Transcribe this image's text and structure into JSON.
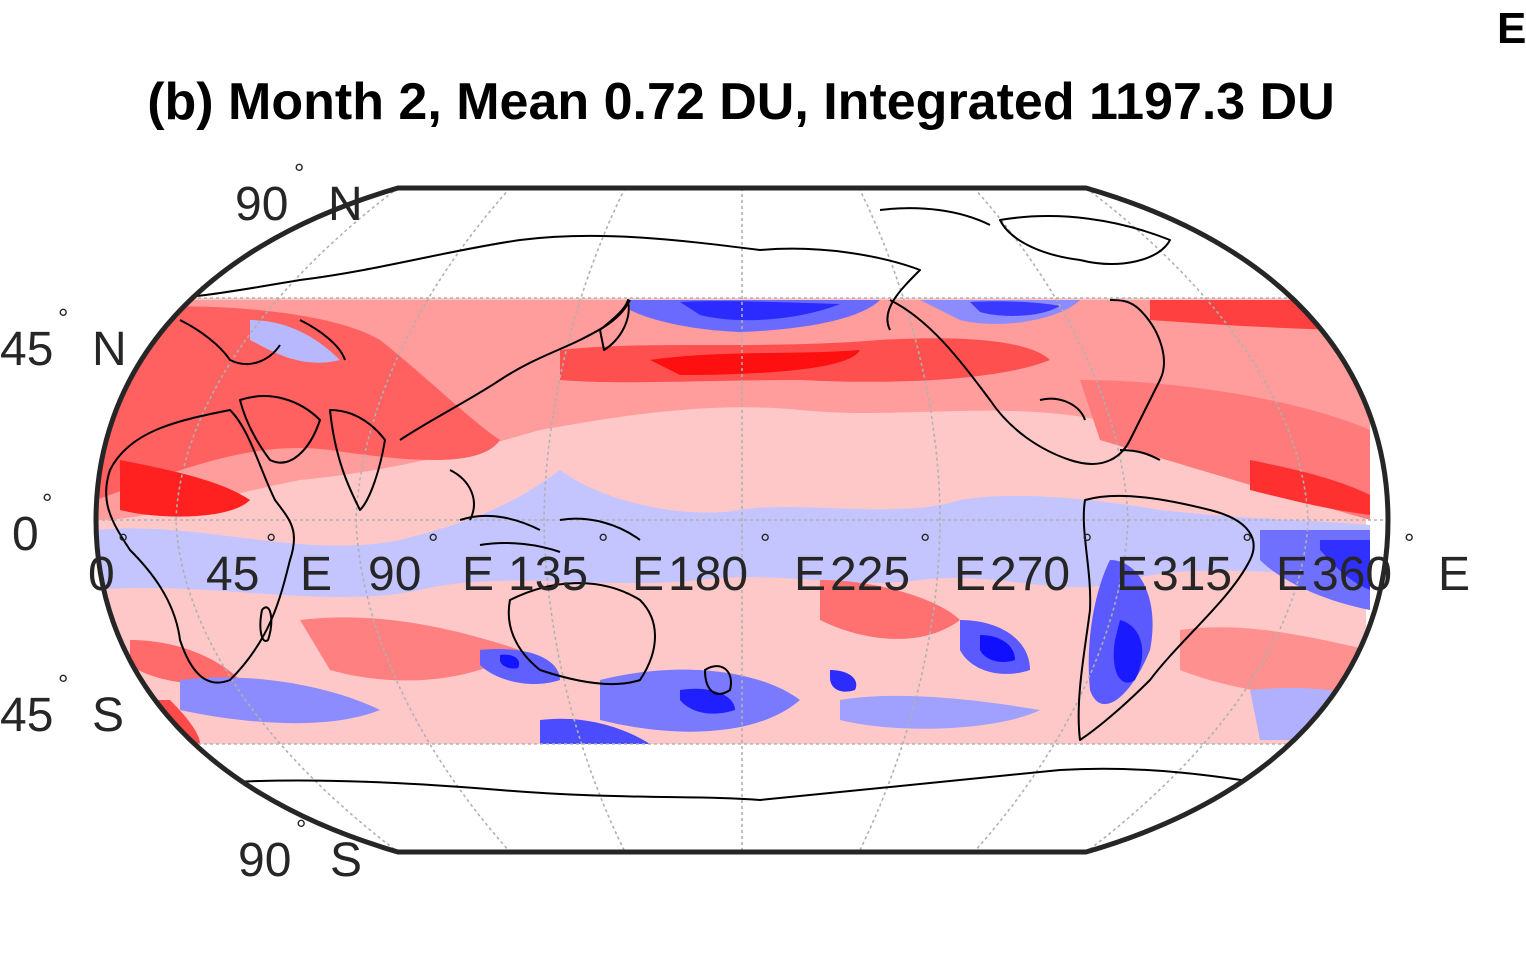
{
  "figure": {
    "title": "(b) Month 2, Mean 0.72 DU, Integrated 1197.3 DU",
    "corner_mark": "E"
  },
  "map": {
    "projection": "Robinson-like",
    "colormap": {
      "negative": "#0000ff",
      "positive": "#ff0000",
      "neutral": "#ffffff"
    },
    "data_lat_range": [
      -50,
      50
    ],
    "lon_labels": [
      {
        "value": "0",
        "suffix": ""
      },
      {
        "value": "45",
        "suffix": "E"
      },
      {
        "value": "90",
        "suffix": "E"
      },
      {
        "value": "135",
        "suffix": "E"
      },
      {
        "value": "180",
        "suffix": "E"
      },
      {
        "value": "225",
        "suffix": "E"
      },
      {
        "value": "270",
        "suffix": "E"
      },
      {
        "value": "315",
        "suffix": "E"
      },
      {
        "value": "360",
        "suffix": "E"
      }
    ],
    "lat_labels": [
      {
        "value": "90",
        "suffix": "N"
      },
      {
        "value": "45",
        "suffix": "N"
      },
      {
        "value": "0",
        "suffix": ""
      },
      {
        "value": "45",
        "suffix": "S"
      },
      {
        "value": "90",
        "suffix": "S"
      }
    ],
    "degree_symbol": "°"
  }
}
